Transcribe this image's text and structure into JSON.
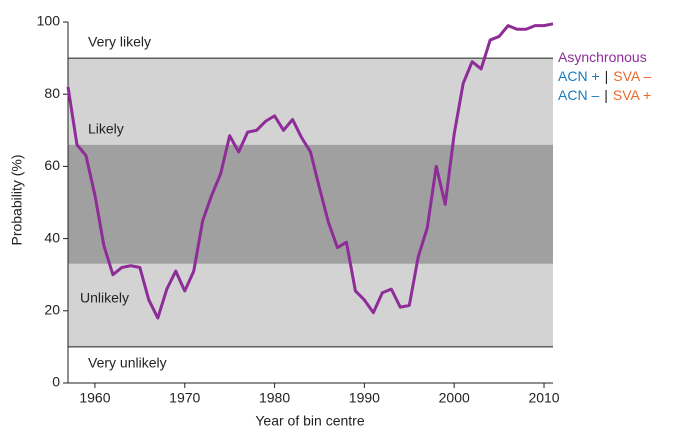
{
  "chart_data": {
    "type": "line",
    "x_label": "Year of bin centre",
    "y_label": "Probability (%)",
    "xlim": [
      1957,
      2011
    ],
    "ylim": [
      0,
      100
    ],
    "xticks": [
      1960,
      1970,
      1980,
      1990,
      2000,
      2010
    ],
    "yticks": [
      0,
      20,
      40,
      60,
      80,
      100
    ],
    "bands": [
      {
        "label": "Very likely",
        "range": [
          90,
          100
        ],
        "color": "#ffffff"
      },
      {
        "label": "Likely",
        "range": [
          66,
          90
        ],
        "color": "#d3d3d3"
      },
      {
        "range": [
          33,
          66
        ],
        "color": "#a0a0a0"
      },
      {
        "label": "Unlikely",
        "range": [
          10,
          33
        ],
        "color": "#d3d3d3"
      },
      {
        "label": "Very unlikely",
        "range": [
          0,
          10
        ],
        "color": "#ffffff"
      }
    ],
    "legend": [
      [
        {
          "text": "Asynchronous",
          "color": "#8e2c98"
        }
      ],
      [
        {
          "text": "ACN +",
          "color": "#1a7bbf"
        },
        {
          "text": "|",
          "color": "#222222"
        },
        {
          "text": "SVA –",
          "color": "#e8692a"
        }
      ],
      [
        {
          "text": "ACN –",
          "color": "#1a7bbf"
        },
        {
          "text": "|",
          "color": "#222222"
        },
        {
          "text": "SVA +",
          "color": "#e8692a"
        }
      ]
    ],
    "x": [
      1957,
      1958,
      1959,
      1960,
      1961,
      1962,
      1963,
      1964,
      1965,
      1966,
      1967,
      1968,
      1969,
      1970,
      1971,
      1972,
      1973,
      1974,
      1975,
      1976,
      1977,
      1978,
      1979,
      1980,
      1981,
      1982,
      1983,
      1984,
      1985,
      1986,
      1987,
      1988,
      1989,
      1990,
      1991,
      1992,
      1993,
      1994,
      1995,
      1996,
      1997,
      1998,
      1999,
      2000,
      2001,
      2002,
      2003,
      2004,
      2005,
      2006,
      2007,
      2008,
      2009,
      2010,
      2011
    ],
    "series": [
      {
        "color": "#8e2c98",
        "values": [
          82,
          66,
          63,
          52,
          38,
          30,
          32,
          32.5,
          32,
          23,
          18,
          26,
          31,
          25.5,
          31,
          45,
          52,
          58,
          68.5,
          64,
          69.5,
          70,
          72.5,
          74,
          70,
          73,
          68,
          64,
          54,
          44.5,
          37.5,
          39,
          25.5,
          23,
          19.5,
          25,
          26,
          21,
          21.5,
          35,
          43,
          60,
          49.5,
          69,
          83,
          89,
          87,
          95,
          96,
          99,
          98,
          98,
          99,
          99,
          99.5
        ]
      }
    ]
  }
}
